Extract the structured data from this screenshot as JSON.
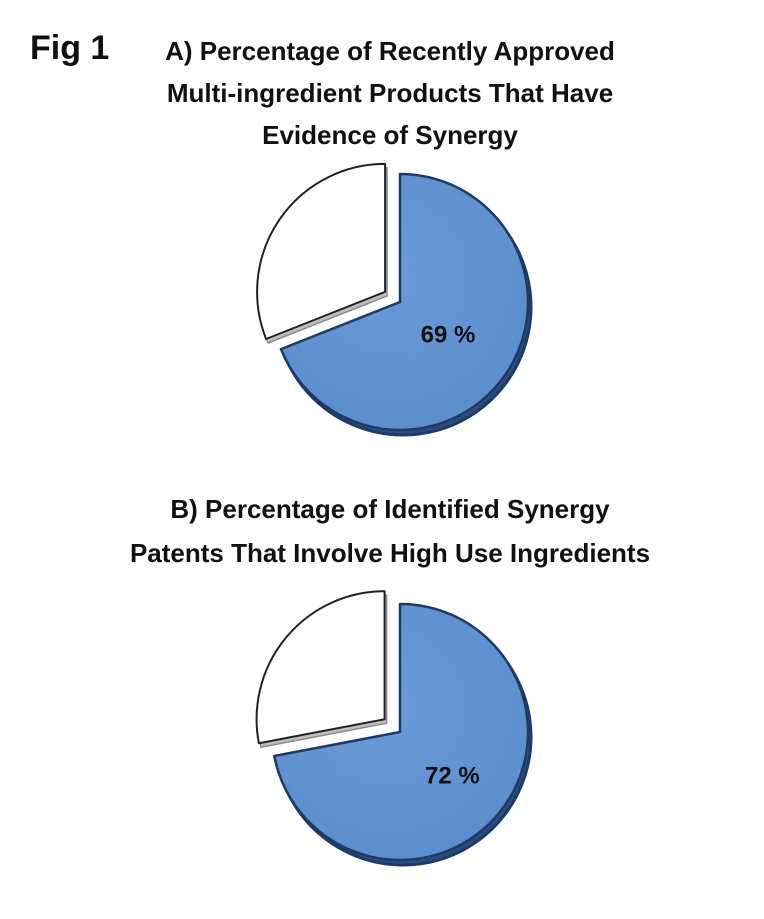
{
  "figure": {
    "label": "Fig 1"
  },
  "chart_data": [
    {
      "type": "pie",
      "title": [
        "A) Percentage of Recently Approved",
        "Multi-ingredient Products That Have",
        "Evidence of Synergy"
      ],
      "values": [
        69,
        31
      ],
      "data_label": "69 %",
      "colors": [
        "#5a8ccc",
        "#ffffff"
      ],
      "exploded_slice": "remainder"
    },
    {
      "type": "pie",
      "title": [
        "B) Percentage of Identified Synergy",
        "Patents That Involve High Use Ingredients"
      ],
      "values": [
        72,
        28
      ],
      "data_label": "72 %",
      "colors": [
        "#5a8ccc",
        "#ffffff"
      ],
      "exploded_slice": "remainder"
    }
  ]
}
